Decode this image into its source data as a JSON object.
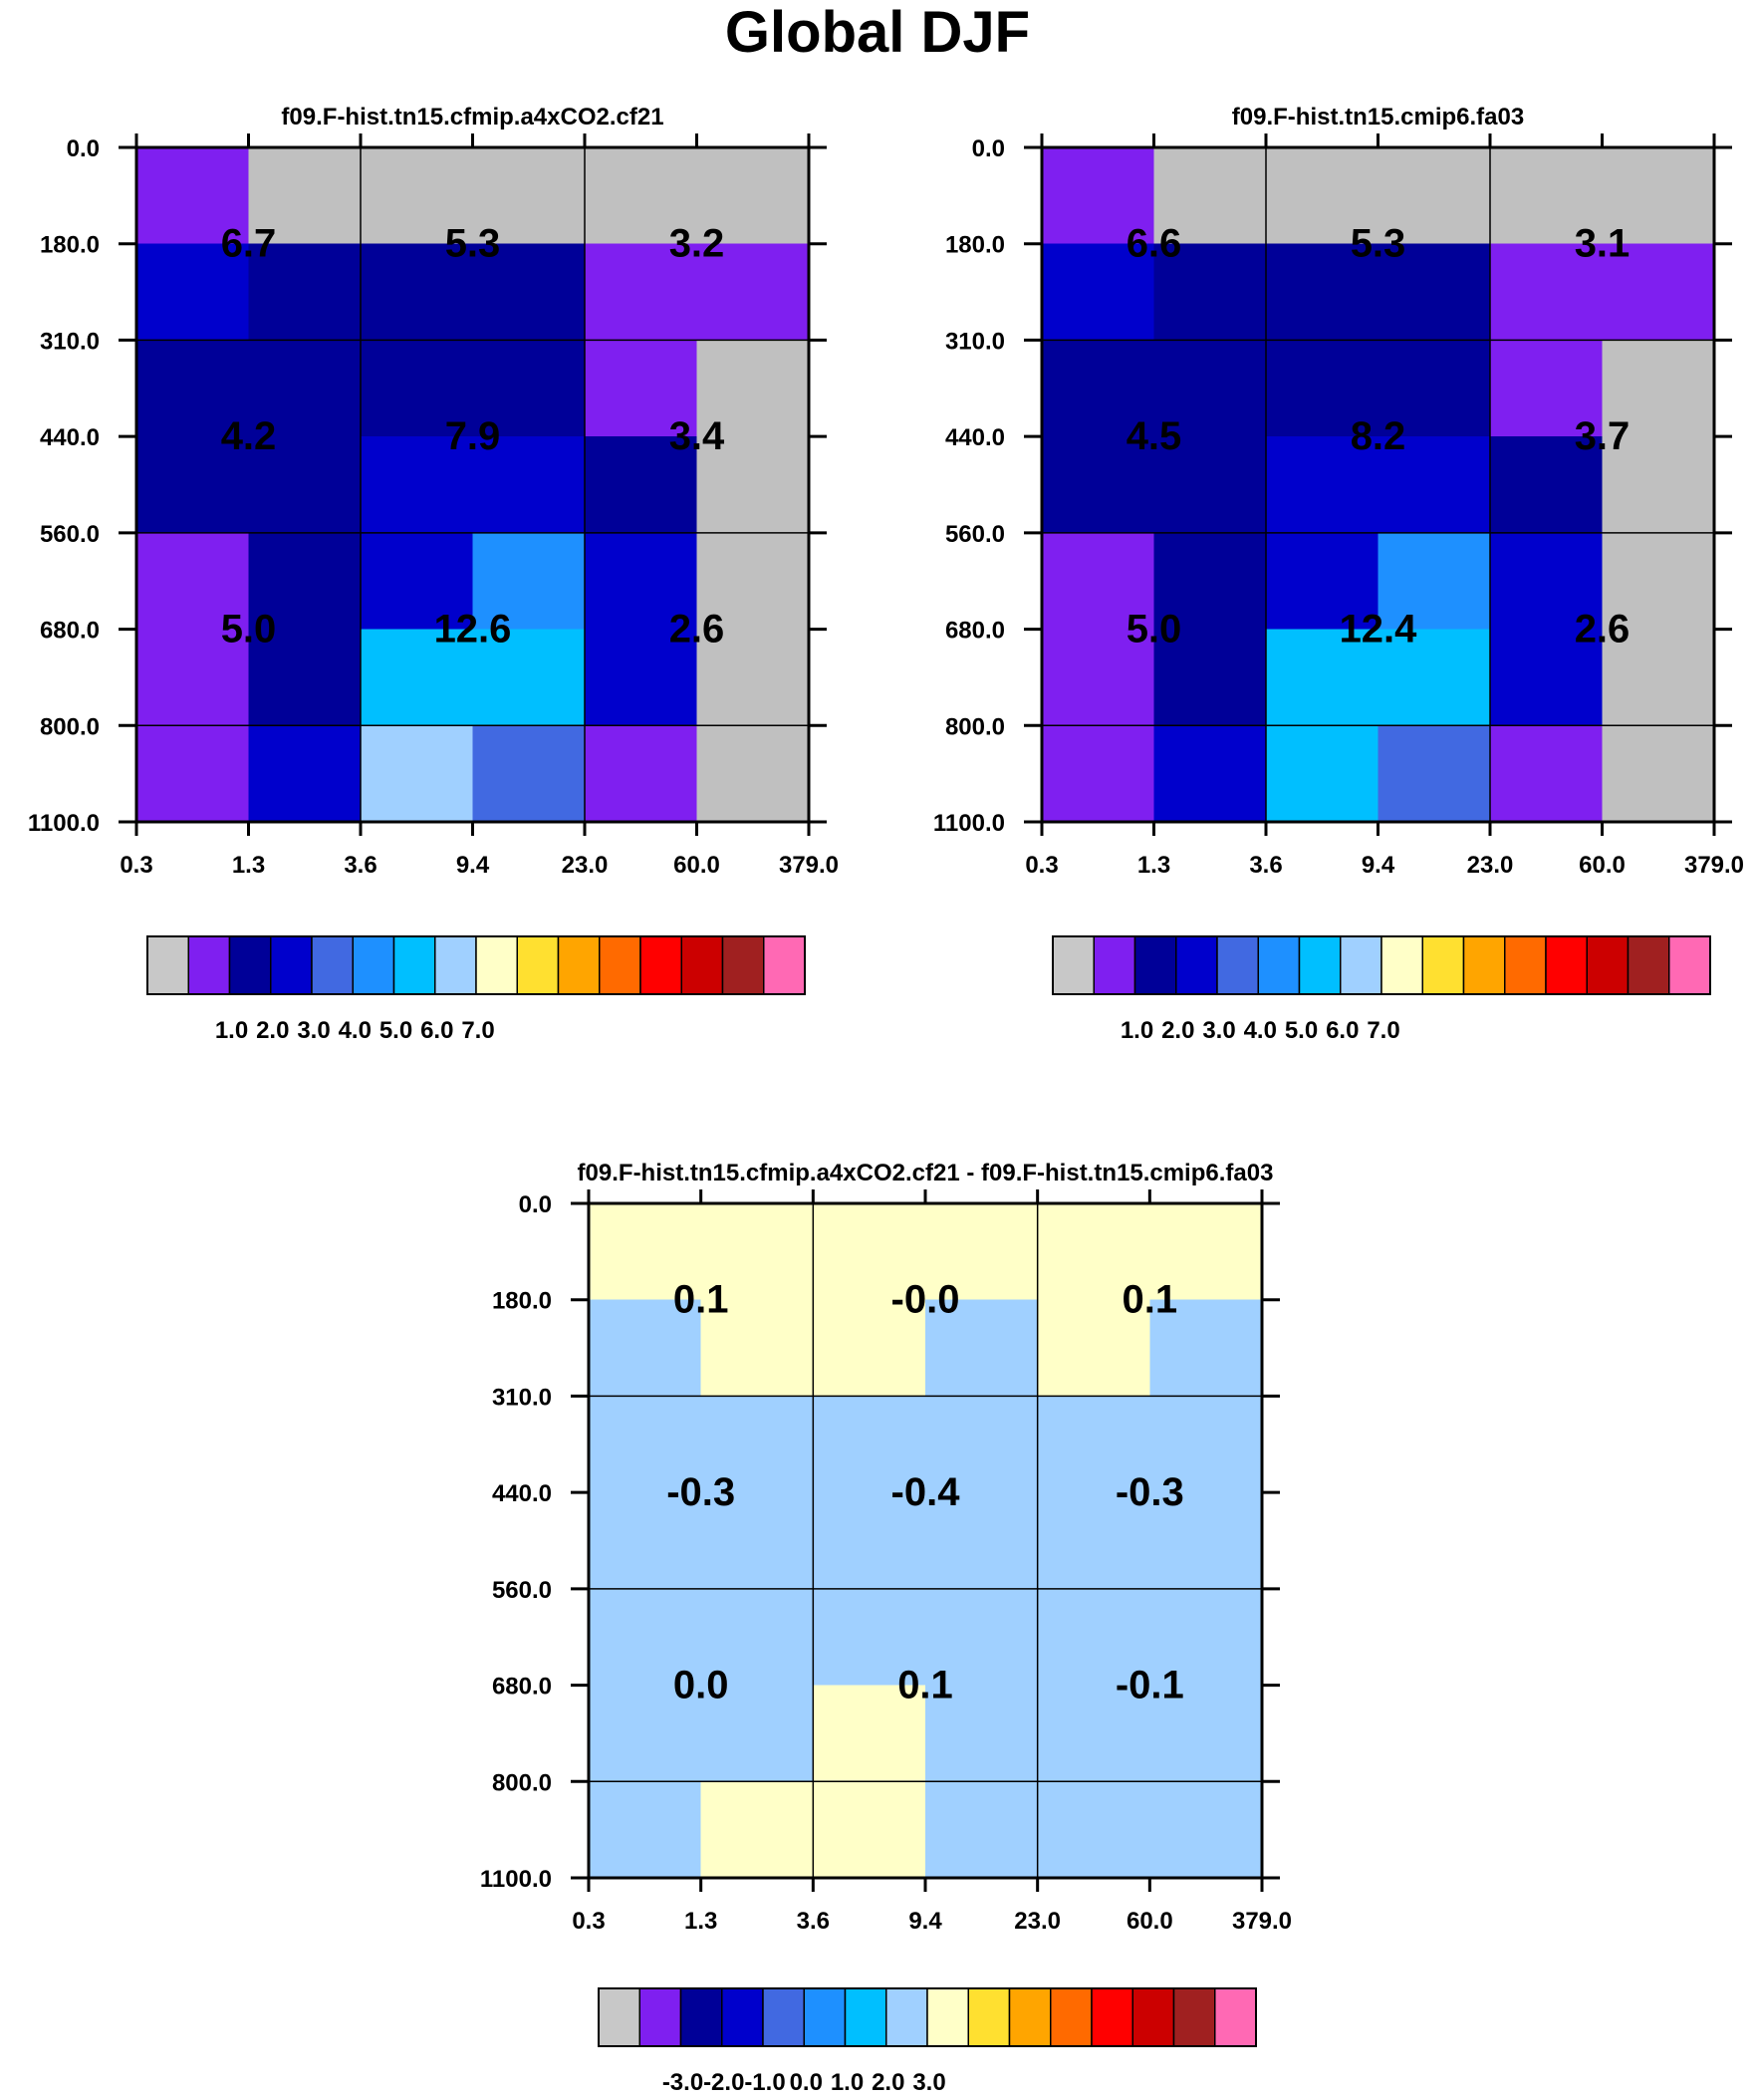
{
  "figure": {
    "title": "Global DJF"
  },
  "chart_data": [
    {
      "type": "heatmap",
      "title": "f09.F-hist.tn15.cfmip.a4xCO2.cf21",
      "xlabel": "",
      "ylabel": "",
      "x_tick_labels": [
        "0.3",
        "1.3",
        "3.6",
        "9.4",
        "23.0",
        "60.0",
        "379.0"
      ],
      "y_tick_labels": [
        "0.0",
        "180.0",
        "310.0",
        "440.0",
        "560.0",
        "680.0",
        "800.0",
        "1100.0"
      ],
      "y_reversed": true,
      "cell_colors": [
        [
          "#7f1ff0",
          "#c0c0c0",
          "#c0c0c0",
          "#c0c0c0",
          "#c0c0c0",
          "#c0c0c0"
        ],
        [
          "#0000cc",
          "#000098",
          "#000098",
          "#000098",
          "#7f1ff0",
          "#7f1ff0"
        ],
        [
          "#000098",
          "#000098",
          "#000098",
          "#000098",
          "#7f1ff0",
          "#c0c0c0"
        ],
        [
          "#000098",
          "#000098",
          "#0000cc",
          "#0000cc",
          "#000098",
          "#c0c0c0"
        ],
        [
          "#7f1ff0",
          "#000098",
          "#0000cc",
          "#1e90ff",
          "#0000cc",
          "#c0c0c0"
        ],
        [
          "#7f1ff0",
          "#000098",
          "#00bfff",
          "#00bfff",
          "#0000cc",
          "#c0c0c0"
        ],
        [
          "#7f1ff0",
          "#0000cc",
          "#a0d0ff",
          "#4169e1",
          "#7f1ff0",
          "#c0c0c0"
        ]
      ],
      "block_values": [
        [
          "6.7",
          "5.3",
          "3.2"
        ],
        [
          "4.2",
          "7.9",
          "3.4"
        ],
        [
          "5.0",
          "12.6",
          "2.6"
        ]
      ],
      "colorbar": {
        "colors": [
          "#c8c8c8",
          "#7f1ff0",
          "#000098",
          "#0000cc",
          "#4169e1",
          "#1e90ff",
          "#00bfff",
          "#a0d0ff",
          "#ffffc8",
          "#ffe030",
          "#ffa500",
          "#ff6a00",
          "#ff0000",
          "#cc0000",
          "#a02020",
          "#ff69b4"
        ],
        "labels": [
          "1.0",
          "2.0",
          "3.0",
          "4.0",
          "5.0",
          "6.0",
          "7.0"
        ],
        "label_start_boundary": 2
      }
    },
    {
      "type": "heatmap",
      "title": "f09.F-hist.tn15.cmip6.fa03",
      "xlabel": "",
      "ylabel": "",
      "x_tick_labels": [
        "0.3",
        "1.3",
        "3.6",
        "9.4",
        "23.0",
        "60.0",
        "379.0"
      ],
      "y_tick_labels": [
        "0.0",
        "180.0",
        "310.0",
        "440.0",
        "560.0",
        "680.0",
        "800.0",
        "1100.0"
      ],
      "y_reversed": true,
      "cell_colors": [
        [
          "#7f1ff0",
          "#c0c0c0",
          "#c0c0c0",
          "#c0c0c0",
          "#c0c0c0",
          "#c0c0c0"
        ],
        [
          "#0000cc",
          "#000098",
          "#000098",
          "#000098",
          "#7f1ff0",
          "#7f1ff0"
        ],
        [
          "#000098",
          "#000098",
          "#000098",
          "#000098",
          "#7f1ff0",
          "#c0c0c0"
        ],
        [
          "#000098",
          "#000098",
          "#0000cc",
          "#0000cc",
          "#000098",
          "#c0c0c0"
        ],
        [
          "#7f1ff0",
          "#000098",
          "#0000cc",
          "#1e90ff",
          "#0000cc",
          "#c0c0c0"
        ],
        [
          "#7f1ff0",
          "#000098",
          "#00bfff",
          "#00bfff",
          "#0000cc",
          "#c0c0c0"
        ],
        [
          "#7f1ff0",
          "#0000cc",
          "#00bfff",
          "#4169e1",
          "#7f1ff0",
          "#c0c0c0"
        ]
      ],
      "block_values": [
        [
          "6.6",
          "5.3",
          "3.1"
        ],
        [
          "4.5",
          "8.2",
          "3.7"
        ],
        [
          "5.0",
          "12.4",
          "2.6"
        ]
      ],
      "colorbar": {
        "colors": [
          "#c8c8c8",
          "#7f1ff0",
          "#000098",
          "#0000cc",
          "#4169e1",
          "#1e90ff",
          "#00bfff",
          "#a0d0ff",
          "#ffffc8",
          "#ffe030",
          "#ffa500",
          "#ff6a00",
          "#ff0000",
          "#cc0000",
          "#a02020",
          "#ff69b4"
        ],
        "labels": [
          "1.0",
          "2.0",
          "3.0",
          "4.0",
          "5.0",
          "6.0",
          "7.0"
        ],
        "label_start_boundary": 2
      }
    },
    {
      "type": "heatmap",
      "title": "f09.F-hist.tn15.cfmip.a4xCO2.cf21 - f09.F-hist.tn15.cmip6.fa03",
      "xlabel": "",
      "ylabel": "",
      "x_tick_labels": [
        "0.3",
        "1.3",
        "3.6",
        "9.4",
        "23.0",
        "60.0",
        "379.0"
      ],
      "y_tick_labels": [
        "0.0",
        "180.0",
        "310.0",
        "440.0",
        "560.0",
        "680.0",
        "800.0",
        "1100.0"
      ],
      "y_reversed": true,
      "cell_colors": [
        [
          "#ffffc8",
          "#ffffc8",
          "#ffffc8",
          "#ffffc8",
          "#ffffc8",
          "#ffffc8"
        ],
        [
          "#a0d0ff",
          "#ffffc8",
          "#ffffc8",
          "#a0d0ff",
          "#ffffc8",
          "#a0d0ff"
        ],
        [
          "#a0d0ff",
          "#a0d0ff",
          "#a0d0ff",
          "#a0d0ff",
          "#a0d0ff",
          "#a0d0ff"
        ],
        [
          "#a0d0ff",
          "#a0d0ff",
          "#a0d0ff",
          "#a0d0ff",
          "#a0d0ff",
          "#a0d0ff"
        ],
        [
          "#a0d0ff",
          "#a0d0ff",
          "#a0d0ff",
          "#a0d0ff",
          "#a0d0ff",
          "#a0d0ff"
        ],
        [
          "#a0d0ff",
          "#a0d0ff",
          "#ffffc8",
          "#a0d0ff",
          "#a0d0ff",
          "#a0d0ff"
        ],
        [
          "#a0d0ff",
          "#ffffc8",
          "#ffffc8",
          "#a0d0ff",
          "#a0d0ff",
          "#a0d0ff"
        ]
      ],
      "block_values": [
        [
          "0.1",
          "-0.0",
          "0.1"
        ],
        [
          "-0.3",
          "-0.4",
          "-0.3"
        ],
        [
          "0.0",
          "0.1",
          "-0.1"
        ]
      ],
      "colorbar": {
        "colors": [
          "#c8c8c8",
          "#7f1ff0",
          "#000098",
          "#0000cc",
          "#4169e1",
          "#1e90ff",
          "#00bfff",
          "#a0d0ff",
          "#ffffc8",
          "#ffe030",
          "#ffa500",
          "#ff6a00",
          "#ff0000",
          "#cc0000",
          "#a02020",
          "#ff69b4"
        ],
        "labels": [
          "-3.0",
          "-2.0",
          "-1.0",
          "0.0",
          "1.0",
          "2.0",
          "3.0"
        ],
        "label_start_boundary": 2
      }
    }
  ]
}
